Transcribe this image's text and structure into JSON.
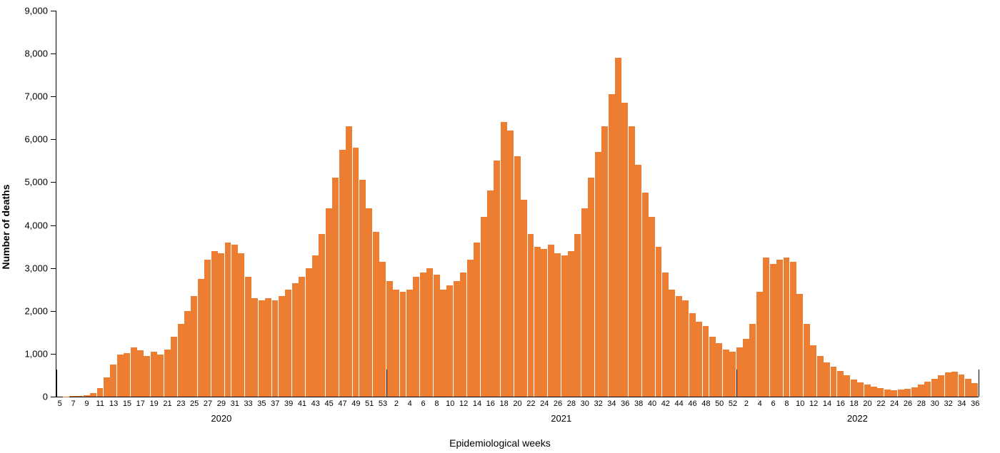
{
  "chart": {
    "type": "bar",
    "y_axis_label": "Number of  deaths",
    "x_axis_label": "Epidemiological weeks",
    "bar_color": "#ed7d31",
    "background_color": "#ffffff",
    "axis_color": "#000000",
    "label_fontsize": 14,
    "tick_fontsize": 13,
    "xtick_fontsize": 11,
    "y_axis": {
      "min": 0,
      "max": 9000,
      "ticks": [
        0,
        1000,
        2000,
        3000,
        4000,
        5000,
        6000,
        7000,
        8000,
        9000
      ],
      "tick_labels": [
        "0",
        "1,000",
        "2,000",
        "3,000",
        "4,000",
        "5,000",
        "6,000",
        "7,000",
        "8,000",
        "9,000"
      ]
    },
    "bars": [
      {
        "year": "2020",
        "week": 5,
        "value": 0
      },
      {
        "year": "2020",
        "week": 6,
        "value": 5
      },
      {
        "year": "2020",
        "week": 7,
        "value": 10
      },
      {
        "year": "2020",
        "week": 8,
        "value": 20
      },
      {
        "year": "2020",
        "week": 9,
        "value": 40
      },
      {
        "year": "2020",
        "week": 10,
        "value": 80
      },
      {
        "year": "2020",
        "week": 11,
        "value": 200
      },
      {
        "year": "2020",
        "week": 12,
        "value": 450
      },
      {
        "year": "2020",
        "week": 13,
        "value": 750
      },
      {
        "year": "2020",
        "week": 14,
        "value": 980
      },
      {
        "year": "2020",
        "week": 15,
        "value": 1020
      },
      {
        "year": "2020",
        "week": 16,
        "value": 1150
      },
      {
        "year": "2020",
        "week": 17,
        "value": 1080
      },
      {
        "year": "2020",
        "week": 18,
        "value": 950
      },
      {
        "year": "2020",
        "week": 19,
        "value": 1050
      },
      {
        "year": "2020",
        "week": 20,
        "value": 980
      },
      {
        "year": "2020",
        "week": 21,
        "value": 1100
      },
      {
        "year": "2020",
        "week": 22,
        "value": 1400
      },
      {
        "year": "2020",
        "week": 23,
        "value": 1700
      },
      {
        "year": "2020",
        "week": 24,
        "value": 2000
      },
      {
        "year": "2020",
        "week": 25,
        "value": 2350
      },
      {
        "year": "2020",
        "week": 26,
        "value": 2750
      },
      {
        "year": "2020",
        "week": 27,
        "value": 3200
      },
      {
        "year": "2020",
        "week": 28,
        "value": 3400
      },
      {
        "year": "2020",
        "week": 29,
        "value": 3350
      },
      {
        "year": "2020",
        "week": 30,
        "value": 3600
      },
      {
        "year": "2020",
        "week": 31,
        "value": 3550
      },
      {
        "year": "2020",
        "week": 32,
        "value": 3350
      },
      {
        "year": "2020",
        "week": 33,
        "value": 2800
      },
      {
        "year": "2020",
        "week": 34,
        "value": 2300
      },
      {
        "year": "2020",
        "week": 35,
        "value": 2250
      },
      {
        "year": "2020",
        "week": 36,
        "value": 2300
      },
      {
        "year": "2020",
        "week": 37,
        "value": 2250
      },
      {
        "year": "2020",
        "week": 38,
        "value": 2350
      },
      {
        "year": "2020",
        "week": 39,
        "value": 2500
      },
      {
        "year": "2020",
        "week": 40,
        "value": 2650
      },
      {
        "year": "2020",
        "week": 41,
        "value": 2800
      },
      {
        "year": "2020",
        "week": 42,
        "value": 3000
      },
      {
        "year": "2020",
        "week": 43,
        "value": 3300
      },
      {
        "year": "2020",
        "week": 44,
        "value": 3800
      },
      {
        "year": "2020",
        "week": 45,
        "value": 4400
      },
      {
        "year": "2020",
        "week": 46,
        "value": 5100
      },
      {
        "year": "2020",
        "week": 47,
        "value": 5750
      },
      {
        "year": "2020",
        "week": 48,
        "value": 6300
      },
      {
        "year": "2020",
        "week": 49,
        "value": 5800
      },
      {
        "year": "2020",
        "week": 50,
        "value": 5050
      },
      {
        "year": "2020",
        "week": 51,
        "value": 4400
      },
      {
        "year": "2020",
        "week": 52,
        "value": 3850
      },
      {
        "year": "2020",
        "week": 53,
        "value": 3150
      },
      {
        "year": "2021",
        "week": 1,
        "value": 2700
      },
      {
        "year": "2021",
        "week": 2,
        "value": 2500
      },
      {
        "year": "2021",
        "week": 3,
        "value": 2450
      },
      {
        "year": "2021",
        "week": 4,
        "value": 2500
      },
      {
        "year": "2021",
        "week": 5,
        "value": 2800
      },
      {
        "year": "2021",
        "week": 6,
        "value": 2900
      },
      {
        "year": "2021",
        "week": 7,
        "value": 3000
      },
      {
        "year": "2021",
        "week": 8,
        "value": 2850
      },
      {
        "year": "2021",
        "week": 9,
        "value": 2500
      },
      {
        "year": "2021",
        "week": 10,
        "value": 2600
      },
      {
        "year": "2021",
        "week": 11,
        "value": 2700
      },
      {
        "year": "2021",
        "week": 12,
        "value": 2900
      },
      {
        "year": "2021",
        "week": 13,
        "value": 3200
      },
      {
        "year": "2021",
        "week": 14,
        "value": 3600
      },
      {
        "year": "2021",
        "week": 15,
        "value": 4200
      },
      {
        "year": "2021",
        "week": 16,
        "value": 4800
      },
      {
        "year": "2021",
        "week": 17,
        "value": 5500
      },
      {
        "year": "2021",
        "week": 18,
        "value": 6400
      },
      {
        "year": "2021",
        "week": 19,
        "value": 6200
      },
      {
        "year": "2021",
        "week": 20,
        "value": 5600
      },
      {
        "year": "2021",
        "week": 21,
        "value": 4600
      },
      {
        "year": "2021",
        "week": 22,
        "value": 3800
      },
      {
        "year": "2021",
        "week": 23,
        "value": 3500
      },
      {
        "year": "2021",
        "week": 24,
        "value": 3450
      },
      {
        "year": "2021",
        "week": 25,
        "value": 3550
      },
      {
        "year": "2021",
        "week": 26,
        "value": 3350
      },
      {
        "year": "2021",
        "week": 27,
        "value": 3300
      },
      {
        "year": "2021",
        "week": 28,
        "value": 3400
      },
      {
        "year": "2021",
        "week": 29,
        "value": 3800
      },
      {
        "year": "2021",
        "week": 30,
        "value": 4400
      },
      {
        "year": "2021",
        "week": 31,
        "value": 5100
      },
      {
        "year": "2021",
        "week": 32,
        "value": 5700
      },
      {
        "year": "2021",
        "week": 33,
        "value": 6300
      },
      {
        "year": "2021",
        "week": 34,
        "value": 7050
      },
      {
        "year": "2021",
        "week": 35,
        "value": 7900
      },
      {
        "year": "2021",
        "week": 36,
        "value": 6850
      },
      {
        "year": "2021",
        "week": 37,
        "value": 6300
      },
      {
        "year": "2021",
        "week": 38,
        "value": 5400
      },
      {
        "year": "2021",
        "week": 39,
        "value": 4750
      },
      {
        "year": "2021",
        "week": 40,
        "value": 4200
      },
      {
        "year": "2021",
        "week": 41,
        "value": 3500
      },
      {
        "year": "2021",
        "week": 42,
        "value": 2900
      },
      {
        "year": "2021",
        "week": 43,
        "value": 2500
      },
      {
        "year": "2021",
        "week": 44,
        "value": 2350
      },
      {
        "year": "2021",
        "week": 45,
        "value": 2250
      },
      {
        "year": "2021",
        "week": 46,
        "value": 1950
      },
      {
        "year": "2021",
        "week": 47,
        "value": 1750
      },
      {
        "year": "2021",
        "week": 48,
        "value": 1650
      },
      {
        "year": "2021",
        "week": 49,
        "value": 1400
      },
      {
        "year": "2021",
        "week": 50,
        "value": 1250
      },
      {
        "year": "2021",
        "week": 51,
        "value": 1100
      },
      {
        "year": "2021",
        "week": 52,
        "value": 1050
      },
      {
        "year": "2022",
        "week": 1,
        "value": 1150
      },
      {
        "year": "2022",
        "week": 2,
        "value": 1350
      },
      {
        "year": "2022",
        "week": 3,
        "value": 1700
      },
      {
        "year": "2022",
        "week": 4,
        "value": 2450
      },
      {
        "year": "2022",
        "week": 5,
        "value": 3250
      },
      {
        "year": "2022",
        "week": 6,
        "value": 3100
      },
      {
        "year": "2022",
        "week": 7,
        "value": 3200
      },
      {
        "year": "2022",
        "week": 8,
        "value": 3250
      },
      {
        "year": "2022",
        "week": 9,
        "value": 3150
      },
      {
        "year": "2022",
        "week": 10,
        "value": 2400
      },
      {
        "year": "2022",
        "week": 11,
        "value": 1700
      },
      {
        "year": "2022",
        "week": 12,
        "value": 1200
      },
      {
        "year": "2022",
        "week": 13,
        "value": 950
      },
      {
        "year": "2022",
        "week": 14,
        "value": 800
      },
      {
        "year": "2022",
        "week": 15,
        "value": 700
      },
      {
        "year": "2022",
        "week": 16,
        "value": 600
      },
      {
        "year": "2022",
        "week": 17,
        "value": 500
      },
      {
        "year": "2022",
        "week": 18,
        "value": 400
      },
      {
        "year": "2022",
        "week": 19,
        "value": 330
      },
      {
        "year": "2022",
        "week": 20,
        "value": 280
      },
      {
        "year": "2022",
        "week": 21,
        "value": 240
      },
      {
        "year": "2022",
        "week": 22,
        "value": 200
      },
      {
        "year": "2022",
        "week": 23,
        "value": 170
      },
      {
        "year": "2022",
        "week": 24,
        "value": 150
      },
      {
        "year": "2022",
        "week": 25,
        "value": 160
      },
      {
        "year": "2022",
        "week": 26,
        "value": 180
      },
      {
        "year": "2022",
        "week": 27,
        "value": 220
      },
      {
        "year": "2022",
        "week": 28,
        "value": 280
      },
      {
        "year": "2022",
        "week": 29,
        "value": 350
      },
      {
        "year": "2022",
        "week": 30,
        "value": 420
      },
      {
        "year": "2022",
        "week": 31,
        "value": 500
      },
      {
        "year": "2022",
        "week": 32,
        "value": 560
      },
      {
        "year": "2022",
        "week": 33,
        "value": 580
      },
      {
        "year": "2022",
        "week": 34,
        "value": 520
      },
      {
        "year": "2022",
        "week": 35,
        "value": 420
      },
      {
        "year": "2022",
        "week": 36,
        "value": 320
      }
    ],
    "x_tick_step": 2,
    "year_labels": [
      "2020",
      "2021",
      "2022"
    ]
  }
}
